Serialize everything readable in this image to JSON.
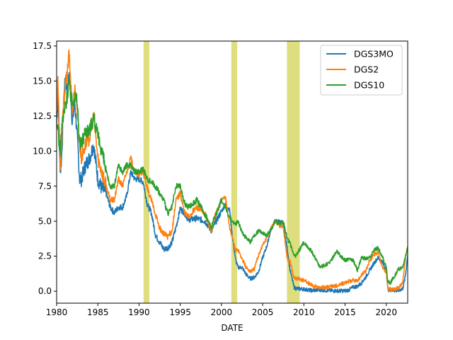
{
  "chart_data": {
    "type": "line",
    "xlabel": "DATE",
    "ylabel": "",
    "xlim": [
      1980,
      2022.6
    ],
    "ylim": [
      -0.85,
      17.85
    ],
    "x_ticks": [
      1980,
      1985,
      1990,
      1995,
      2000,
      2005,
      2010,
      2015,
      2020
    ],
    "y_ticks": [
      0.0,
      2.5,
      5.0,
      7.5,
      10.0,
      12.5,
      15.0,
      17.5
    ],
    "y_tick_labels": [
      "0.0",
      "2.5",
      "5.0",
      "7.5",
      "10.0",
      "12.5",
      "15.0",
      "17.5"
    ],
    "grid": false,
    "legend_position": "top-right",
    "recession_bands": {
      "color": "#dede7e",
      "spans": [
        [
          1990.55,
          1991.25
        ],
        [
          2001.2,
          2001.9
        ],
        [
          2007.95,
          2009.5
        ]
      ]
    },
    "series": [
      {
        "name": "DGS3MO",
        "color": "#1f77b4",
        "x": [
          1980.0,
          1980.15,
          1980.3,
          1980.45,
          1980.6,
          1980.8,
          1981.0,
          1981.3,
          1981.6,
          1981.9,
          1982.2,
          1982.5,
          1982.8,
          1983.0,
          1983.5,
          1984.0,
          1984.5,
          1985.0,
          1985.5,
          1986.0,
          1986.5,
          1987.0,
          1987.5,
          1988.0,
          1988.5,
          1989.0,
          1989.5,
          1990.0,
          1990.5,
          1991.0,
          1991.5,
          1992.0,
          1992.5,
          1993.0,
          1993.5,
          1994.0,
          1994.5,
          1995.0,
          1995.5,
          1996.0,
          1997.0,
          1998.0,
          1998.8,
          1999.0,
          2000.0,
          2000.5,
          2001.0,
          2001.3,
          2001.7,
          2002.0,
          2002.5,
          2003.0,
          2003.5,
          2004.0,
          2004.5,
          2005.0,
          2005.5,
          2006.0,
          2006.5,
          2007.0,
          2007.5,
          2008.0,
          2008.3,
          2008.8,
          2009.0,
          2010.0,
          2011.0,
          2012.0,
          2013.0,
          2014.0,
          2015.0,
          2015.5,
          2016.0,
          2016.5,
          2017.0,
          2017.5,
          2018.0,
          2018.5,
          2019.0,
          2019.5,
          2020.0,
          2020.2,
          2020.5,
          2021.0,
          2021.5,
          2022.0,
          2022.3,
          2022.6
        ],
        "values": [
          12.0,
          14.0,
          11.0,
          8.5,
          9.5,
          12.5,
          15.0,
          14.5,
          15.5,
          12.0,
          13.5,
          11.0,
          8.0,
          8.0,
          9.0,
          9.5,
          10.5,
          8.0,
          7.3,
          7.0,
          6.0,
          5.6,
          6.0,
          6.0,
          6.8,
          8.5,
          8.0,
          8.0,
          7.8,
          6.2,
          5.6,
          4.0,
          3.5,
          3.0,
          3.1,
          3.5,
          4.6,
          5.9,
          5.6,
          5.1,
          5.2,
          5.0,
          4.3,
          4.6,
          5.7,
          6.2,
          5.8,
          4.0,
          2.3,
          1.7,
          1.7,
          1.2,
          0.9,
          1.0,
          1.4,
          2.4,
          3.2,
          4.4,
          5.0,
          5.0,
          4.8,
          3.0,
          1.6,
          0.3,
          0.2,
          0.15,
          0.05,
          0.1,
          0.05,
          0.03,
          0.03,
          0.1,
          0.3,
          0.35,
          0.6,
          1.0,
          1.5,
          2.0,
          2.4,
          2.1,
          1.5,
          0.1,
          0.1,
          0.05,
          0.05,
          0.2,
          1.0,
          2.6
        ]
      },
      {
        "name": "DGS2",
        "color": "#ff7f0e",
        "x": [
          1980.0,
          1980.15,
          1980.3,
          1980.45,
          1980.6,
          1980.8,
          1981.0,
          1981.3,
          1981.5,
          1981.7,
          1981.9,
          1982.2,
          1982.5,
          1982.8,
          1983.0,
          1983.5,
          1984.0,
          1984.5,
          1985.0,
          1985.5,
          1986.0,
          1986.5,
          1987.0,
          1987.5,
          1988.0,
          1988.5,
          1989.0,
          1989.5,
          1990.0,
          1990.5,
          1991.0,
          1991.5,
          1992.0,
          1992.5,
          1993.0,
          1993.5,
          1994.0,
          1994.5,
          1995.0,
          1995.5,
          1996.0,
          1997.0,
          1998.0,
          1998.8,
          1999.0,
          2000.0,
          2000.5,
          2001.0,
          2001.3,
          2001.7,
          2002.0,
          2002.5,
          2003.0,
          2003.5,
          2004.0,
          2004.5,
          2005.0,
          2005.5,
          2006.0,
          2006.5,
          2007.0,
          2007.5,
          2008.0,
          2008.3,
          2008.8,
          2009.0,
          2010.0,
          2011.0,
          2012.0,
          2013.0,
          2014.0,
          2015.0,
          2015.5,
          2016.0,
          2016.5,
          2017.0,
          2017.5,
          2018.0,
          2018.5,
          2019.0,
          2019.5,
          2020.0,
          2020.2,
          2020.5,
          2021.0,
          2021.5,
          2022.0,
          2022.3,
          2022.6
        ],
        "values": [
          13.0,
          15.0,
          12.0,
          9.0,
          10.5,
          13.0,
          14.5,
          15.5,
          17.0,
          15.0,
          13.0,
          14.5,
          13.0,
          10.5,
          9.5,
          10.5,
          11.0,
          12.5,
          9.5,
          8.5,
          7.5,
          6.5,
          6.5,
          8.0,
          7.5,
          8.5,
          9.5,
          8.5,
          8.3,
          8.5,
          7.3,
          6.5,
          5.5,
          4.5,
          4.1,
          3.9,
          4.3,
          6.5,
          7.0,
          5.6,
          5.3,
          6.0,
          5.5,
          4.3,
          5.0,
          6.5,
          6.7,
          4.5,
          3.9,
          2.9,
          3.0,
          2.3,
          1.7,
          1.4,
          1.6,
          2.6,
          3.3,
          3.8,
          4.5,
          5.0,
          4.7,
          4.6,
          2.2,
          2.2,
          1.0,
          0.9,
          0.8,
          0.4,
          0.25,
          0.3,
          0.4,
          0.6,
          0.7,
          0.8,
          0.7,
          1.2,
          1.4,
          2.2,
          2.6,
          2.8,
          1.7,
          1.3,
          0.2,
          0.15,
          0.12,
          0.25,
          0.6,
          2.3,
          3.2
        ]
      },
      {
        "name": "DGS10",
        "color": "#2ca02c",
        "x": [
          1980.0,
          1980.15,
          1980.3,
          1980.45,
          1980.6,
          1980.8,
          1981.0,
          1981.3,
          1981.5,
          1981.7,
          1981.9,
          1982.2,
          1982.5,
          1982.8,
          1983.0,
          1983.5,
          1984.0,
          1984.5,
          1985.0,
          1985.5,
          1986.0,
          1986.5,
          1987.0,
          1987.5,
          1988.0,
          1988.5,
          1989.0,
          1989.5,
          1990.0,
          1990.5,
          1991.0,
          1991.5,
          1992.0,
          1992.5,
          1993.0,
          1993.5,
          1994.0,
          1994.5,
          1995.0,
          1995.5,
          1996.0,
          1997.0,
          1998.0,
          1998.8,
          1999.0,
          2000.0,
          2000.5,
          2001.0,
          2001.3,
          2001.7,
          2002.0,
          2002.5,
          2003.0,
          2003.5,
          2004.0,
          2004.5,
          2005.0,
          2005.5,
          2006.0,
          2006.5,
          2007.0,
          2007.5,
          2008.0,
          2008.3,
          2008.8,
          2009.0,
          2010.0,
          2011.0,
          2012.0,
          2013.0,
          2014.0,
          2015.0,
          2015.5,
          2016.0,
          2016.5,
          2017.0,
          2017.5,
          2018.0,
          2018.5,
          2019.0,
          2019.5,
          2020.0,
          2020.2,
          2020.5,
          2021.0,
          2021.5,
          2022.0,
          2022.3,
          2022.6
        ],
        "values": [
          11.5,
          12.0,
          10.5,
          10.0,
          11.5,
          12.5,
          13.0,
          14.0,
          15.0,
          14.0,
          13.5,
          14.0,
          13.5,
          10.5,
          10.5,
          11.5,
          11.5,
          12.5,
          11.0,
          10.0,
          8.5,
          7.5,
          7.5,
          9.0,
          8.5,
          9.0,
          9.0,
          8.5,
          8.5,
          8.8,
          8.0,
          7.8,
          7.5,
          7.0,
          6.5,
          5.5,
          6.0,
          7.5,
          7.5,
          6.3,
          6.0,
          6.5,
          5.5,
          4.5,
          5.0,
          6.5,
          6.0,
          5.2,
          5.0,
          4.8,
          5.0,
          4.2,
          3.8,
          3.5,
          4.0,
          4.3,
          4.2,
          4.0,
          4.4,
          5.0,
          4.8,
          5.0,
          3.7,
          3.5,
          2.5,
          2.5,
          3.5,
          2.8,
          1.7,
          2.0,
          2.8,
          2.2,
          2.3,
          2.2,
          1.5,
          2.4,
          2.3,
          2.4,
          2.9,
          3.1,
          2.5,
          1.7,
          0.7,
          0.6,
          1.1,
          1.6,
          1.7,
          2.4,
          3.2
        ]
      }
    ]
  }
}
